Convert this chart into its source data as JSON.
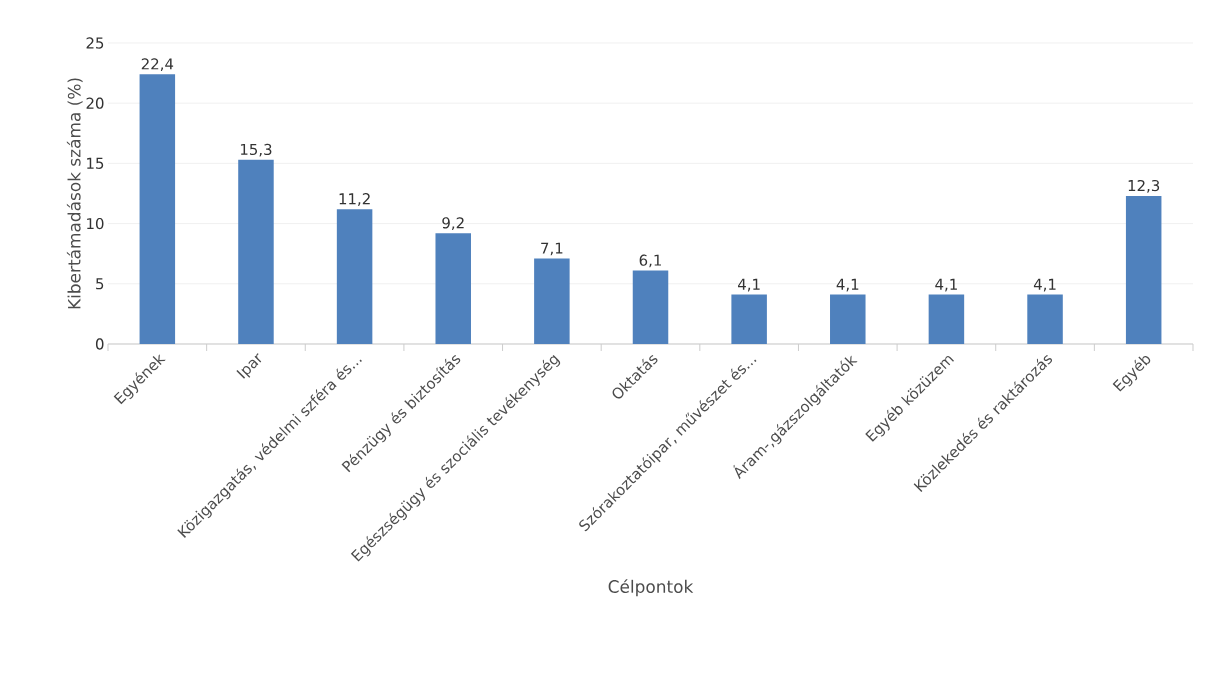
{
  "chart_data": {
    "type": "bar",
    "xlabel": "Célpontok",
    "ylabel": "Kibertámadások száma (%)",
    "categories": [
      "Egyének",
      "Ipar",
      "Közigazgatás, védelmi szféra és...",
      "Pénzügy és biztosítás",
      "Egészségügy és szociális tevékenység",
      "Oktatás",
      "Szórakoztatóipar, művészet és...",
      "Áram-,gázszolgáltatók",
      "Egyéb közüzem",
      "Közlekedés és raktározás",
      "Egyéb"
    ],
    "values": [
      22.4,
      15.3,
      11.2,
      9.2,
      7.1,
      6.1,
      4.1,
      4.1,
      4.1,
      4.1,
      12.3
    ],
    "value_labels": [
      "22,4",
      "15,3",
      "11,2",
      "9,2",
      "7,1",
      "6,1",
      "4,1",
      "4,1",
      "4,1",
      "4,1",
      "12,3"
    ],
    "color": "#4f81bd",
    "ylim": [
      0,
      25
    ],
    "yticks": [
      0,
      5,
      10,
      15,
      20,
      25
    ],
    "grid": "y"
  }
}
